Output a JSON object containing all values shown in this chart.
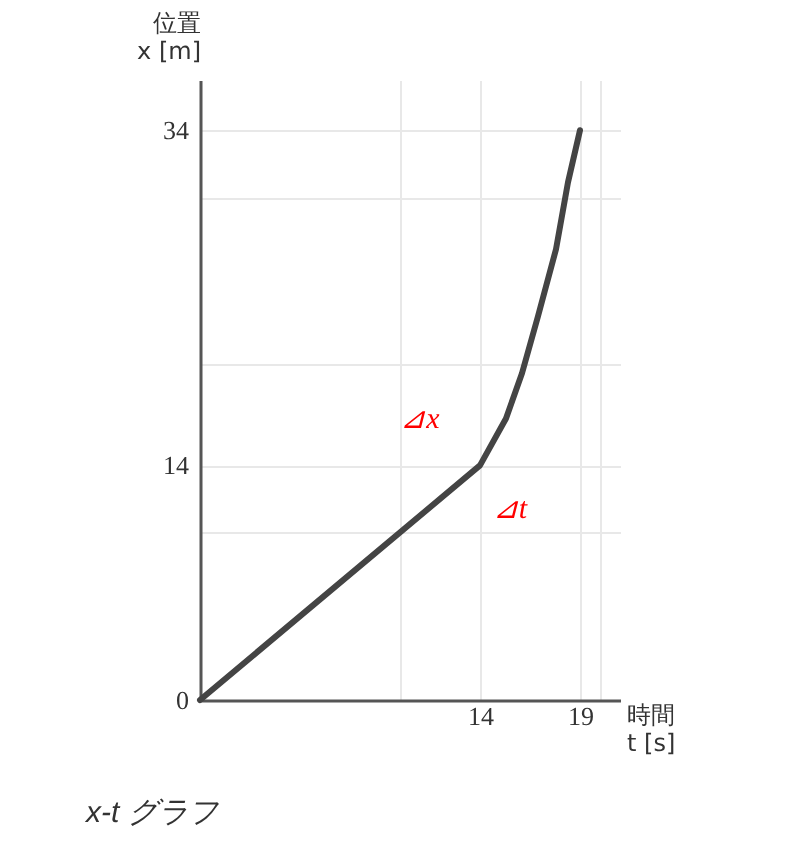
{
  "chart_data": {
    "type": "line",
    "title": "x-t グラフ",
    "xlabel": "時間\nt [s]",
    "ylabel": "位置\nx [m]",
    "x": [
      0,
      14,
      15.3,
      16.1,
      16.9,
      17.8,
      18.4,
      19
    ],
    "series": [
      {
        "color": "#444444",
        "values": [
          0,
          14,
          16.8,
          19.5,
          22.9,
          26.9,
          30.9,
          34
        ]
      }
    ],
    "xlim": [
      0,
      21
    ],
    "ylim": [
      0,
      37
    ],
    "xticks": [
      {
        "value": 10,
        "label": null
      },
      14,
      19,
      {
        "value": 20,
        "label": null
      }
    ],
    "yticks": [
      0,
      {
        "value": 10,
        "label": null
      },
      14,
      {
        "value": 20,
        "label": null
      },
      {
        "value": 30,
        "label": null
      },
      34
    ],
    "grid": true,
    "marker": "none",
    "line_style": "solid",
    "annotations": [
      "⊿x",
      "⊿t"
    ]
  }
}
